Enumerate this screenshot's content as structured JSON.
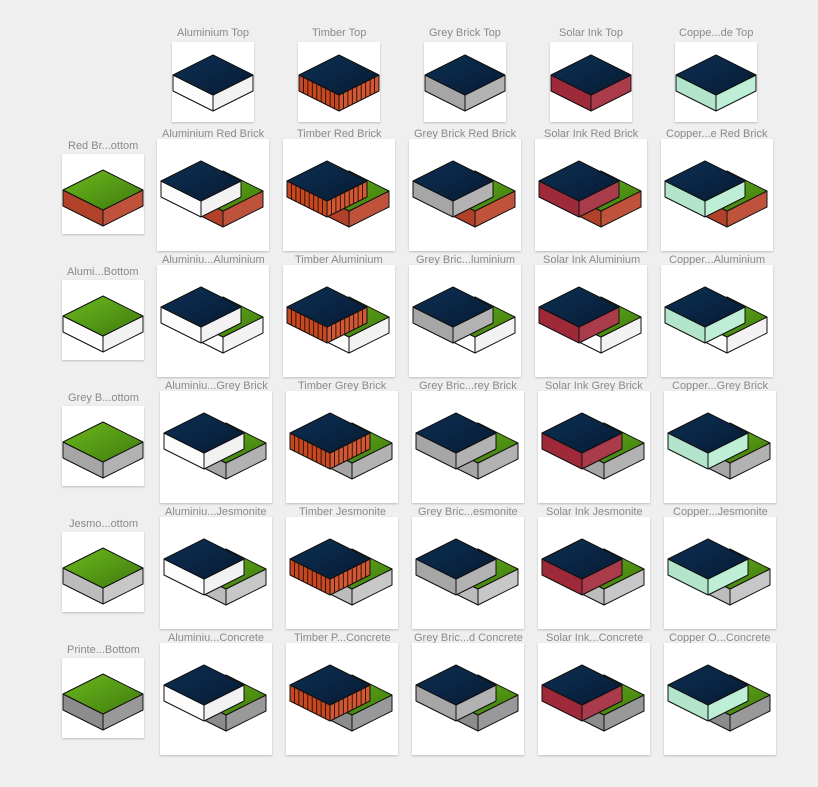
{
  "colors": {
    "background": "#efefef",
    "top_navy": "#0a2847",
    "grass": "#5c9c1c",
    "aluminium": "#ffffff",
    "timber": "#cc4a22",
    "grey_brick": "#ababab",
    "solar_ink": "#a32a3a",
    "copper_oxide": "#b8ecd2",
    "red_brick": "#b8432a",
    "jesmonite": "#c2c2c2",
    "concrete": "#909090"
  },
  "top_swatches": [
    {
      "label": "Aluminium Top",
      "material": "aluminium"
    },
    {
      "label": "Timber Top",
      "material": "timber"
    },
    {
      "label": "Grey Brick Top",
      "material": "grey_brick"
    },
    {
      "label": "Solar Ink Top",
      "material": "solar_ink"
    },
    {
      "label": "Coppe...de Top",
      "material": "copper_oxide"
    }
  ],
  "rows": [
    {
      "label": "Red Br...ottom",
      "material": "red_brick",
      "cells": [
        "Aluminium Red Brick",
        "Timber Red Brick",
        "Grey Brick Red Brick",
        "Solar Ink Red Brick",
        "Copper...e Red Brick"
      ]
    },
    {
      "label": "Alumi...Bottom",
      "material": "aluminium",
      "cells": [
        "Aluminiu...Aluminium",
        "Timber Aluminium",
        "Grey Bric...luminium",
        "Solar Ink Aluminium",
        "Copper...Aluminium"
      ]
    },
    {
      "label": "Grey B...ottom",
      "material": "grey_brick",
      "cells": [
        "Aluminiu...Grey Brick",
        "Timber Grey Brick",
        "Grey Bric...rey Brick",
        "Solar Ink Grey Brick",
        "Copper...Grey Brick"
      ]
    },
    {
      "label": "Jesmo...ottom",
      "material": "jesmonite",
      "cells": [
        "Aluminiu...Jesmonite",
        "Timber Jesmonite",
        "Grey Bric...esmonite",
        "Solar Ink Jesmonite",
        "Copper...Jesmonite"
      ]
    },
    {
      "label": "Printe...Bottom",
      "material": "concrete",
      "cells": [
        "Aluminiu...Concrete",
        "Timber P...Concrete",
        "Grey Bric...d Concrete",
        "Solar Ink...Concrete",
        "Copper O...Concrete"
      ]
    }
  ]
}
